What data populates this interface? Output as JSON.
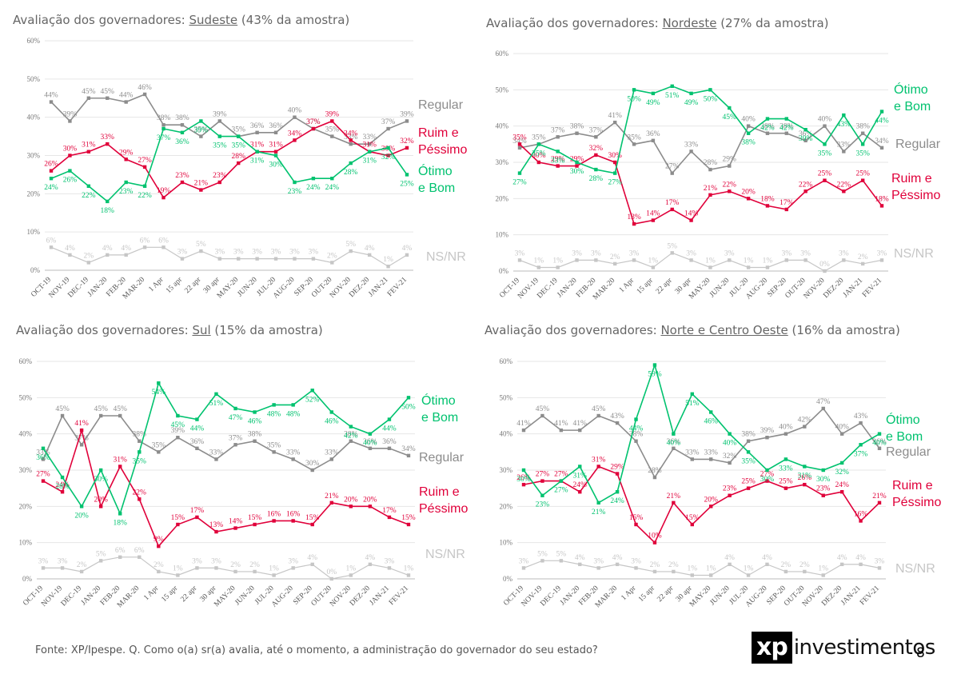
{
  "colors": {
    "regular": "#8c8c8c",
    "ruim": "#e0003a",
    "otimo": "#00c26f",
    "nsnr": "#c6c6c6",
    "grid": "#e6e6e6",
    "axis": "#777777"
  },
  "footer": {
    "source": "Fonte: XP/Ipespe. Q. Como o(a) sr(a) avalia, até o momento, a administração do governador do seu estado?"
  },
  "logo": {
    "mark": "xp",
    "word": "investimentos"
  },
  "page_number": "8",
  "chart_data": [
    {
      "type": "line",
      "title": {
        "prefix": "Avaliação dos governadores: ",
        "region": "Sudeste",
        "suffix": " (43% da amostra)"
      },
      "categories": [
        "OCT-19",
        "NOV-19",
        "DEC-19",
        "JAN-20",
        "FEB-20",
        "MAR-20",
        "1 Apr",
        "15 apr",
        "22 apr",
        "30 apr",
        "MAY-20",
        "JUN-20",
        "JUL-20",
        "AUG-20",
        "SEP-20",
        "OUT-20",
        "NOV-20",
        "DEZ-20",
        "JAN-21",
        "FEV-21"
      ],
      "yticks": [
        "0%",
        "10%",
        "20%",
        "30%",
        "40%",
        "50%",
        "60%"
      ],
      "ylim": [
        0,
        60
      ],
      "series": [
        {
          "key": "regular",
          "name": "Regular",
          "values": [
            44,
            39,
            45,
            45,
            44,
            46,
            38,
            38,
            35,
            39,
            35,
            36,
            36,
            40,
            37,
            35,
            33,
            33,
            37,
            39
          ]
        },
        {
          "key": "ruim",
          "name": "Ruim e Péssimo",
          "values": [
            26,
            30,
            31,
            33,
            29,
            27,
            19,
            23,
            21,
            23,
            28,
            31,
            31,
            34,
            37,
            39,
            34,
            31,
            30,
            32
          ]
        },
        {
          "key": "otimo",
          "name": "Ótimo e Bom",
          "values": [
            24,
            26,
            22,
            18,
            23,
            22,
            37,
            36,
            39,
            35,
            35,
            31,
            30,
            23,
            24,
            24,
            28,
            31,
            32,
            25
          ]
        },
        {
          "key": "nsnr",
          "name": "NS/NR",
          "values": [
            6,
            4,
            2,
            4,
            4,
            6,
            6,
            3,
            5,
            3,
            3,
            3,
            3,
            3,
            3,
            2,
            5,
            4,
            1,
            4
          ]
        }
      ]
    },
    {
      "type": "line",
      "title": {
        "prefix": "Avaliação dos governadores: ",
        "region": "Nordeste",
        "suffix": " (27% da amostra)"
      },
      "categories": [
        "OCT-19",
        "NOV-19",
        "DEC-19",
        "JAN-20",
        "FEB-20",
        "MAR-20",
        "1 Apr",
        "15 apr",
        "22 apr",
        "30 apr",
        "MAY-20",
        "JUN-20",
        "JUL-20",
        "AUG-20",
        "SEP-20",
        "OUT-20",
        "NOV-20",
        "DEZ-20",
        "JAN-21",
        "FEV-21"
      ],
      "yticks": [
        "0%",
        "10%",
        "20%",
        "30%",
        "40%",
        "50%",
        "60%"
      ],
      "ylim": [
        0,
        60
      ],
      "series": [
        {
          "key": "regular",
          "name": "Regular",
          "values": [
            34,
            35,
            37,
            38,
            37,
            41,
            35,
            36,
            27,
            33,
            28,
            29,
            40,
            38,
            38,
            36,
            40,
            33,
            38,
            34
          ]
        },
        {
          "key": "ruim",
          "name": "Ruim e Péssimo",
          "values": [
            35,
            30,
            29,
            29,
            32,
            30,
            13,
            14,
            17,
            14,
            21,
            22,
            20,
            18,
            17,
            22,
            25,
            22,
            25,
            18
          ]
        },
        {
          "key": "otimo",
          "name": "Ótimo e Bom",
          "values": [
            27,
            35,
            33,
            30,
            28,
            27,
            50,
            49,
            51,
            49,
            50,
            45,
            38,
            42,
            42,
            39,
            35,
            43,
            35,
            44
          ]
        },
        {
          "key": "nsnr",
          "name": "NS/NR",
          "values": [
            3,
            1,
            1,
            3,
            3,
            2,
            3,
            1,
            5,
            3,
            1,
            3,
            1,
            1,
            3,
            3,
            0,
            3,
            2,
            3
          ]
        }
      ]
    },
    {
      "type": "line",
      "title": {
        "prefix": "Avaliação dos governadores: ",
        "region": "Sul",
        "suffix": " (15% da amostra)"
      },
      "categories": [
        "OCT-19",
        "NOV-19",
        "DEC-19",
        "JAN-20",
        "FEB-20",
        "MAR-20",
        "1 Apr",
        "15 apr",
        "22 apr",
        "30 apr",
        "MAY-20",
        "JUN-20",
        "JUL-20",
        "AUG-20",
        "SEP-20",
        "OUT-20",
        "NOV-20",
        "DEZ-20",
        "JAN-21",
        "FEV-21"
      ],
      "yticks": [
        "0%",
        "10%",
        "20%",
        "30%",
        "40%",
        "50%",
        "60%"
      ],
      "ylim": [
        0,
        60
      ],
      "series": [
        {
          "key": "regular",
          "name": "Regular",
          "values": [
            33,
            45,
            37,
            45,
            45,
            38,
            35,
            39,
            36,
            33,
            37,
            38,
            35,
            33,
            30,
            33,
            38,
            36,
            36,
            34
          ]
        },
        {
          "key": "ruim",
          "name": "Ruim e Péssimo",
          "values": [
            27,
            24,
            41,
            20,
            31,
            22,
            9,
            15,
            17,
            13,
            14,
            15,
            16,
            16,
            15,
            21,
            20,
            20,
            17,
            15
          ]
        },
        {
          "key": "otimo",
          "name": "Ótimo e Bom",
          "values": [
            36,
            28,
            20,
            30,
            18,
            35,
            54,
            45,
            44,
            51,
            47,
            46,
            48,
            48,
            52,
            46,
            42,
            40,
            44,
            50
          ]
        },
        {
          "key": "nsnr",
          "name": "NS/NR",
          "values": [
            3,
            3,
            2,
            5,
            6,
            6,
            2,
            1,
            3,
            3,
            2,
            2,
            1,
            3,
            4,
            0,
            1,
            4,
            3,
            1
          ]
        }
      ]
    },
    {
      "type": "line",
      "title": {
        "prefix": "Avaliação dos governadores: ",
        "region": "Norte e Centro Oeste",
        "suffix": " (16% da amostra)"
      },
      "categories": [
        "OCT-19",
        "NOV-19",
        "DEC-19",
        "JAN-20",
        "FEB-20",
        "MAR-20",
        "1 Apr",
        "15 apr",
        "22 apr",
        "30 apr",
        "MAY-20",
        "JUN-20",
        "JUL-20",
        "AUG-20",
        "SEP-20",
        "OUT-20",
        "NOV-20",
        "DEZ-20",
        "JAN-21",
        "FEV-21"
      ],
      "yticks": [
        "0%",
        "10%",
        "20%",
        "30%",
        "40%",
        "50%",
        "60%"
      ],
      "ylim": [
        0,
        60
      ],
      "series": [
        {
          "key": "regular",
          "name": "Regular",
          "values": [
            41,
            45,
            41,
            41,
            45,
            43,
            38,
            28,
            36,
            33,
            33,
            32,
            38,
            39,
            40,
            42,
            47,
            40,
            43,
            36
          ]
        },
        {
          "key": "ruim",
          "name": "Ruim e Péssimo",
          "values": [
            26,
            27,
            27,
            24,
            31,
            29,
            15,
            10,
            21,
            15,
            20,
            23,
            25,
            27,
            25,
            26,
            23,
            24,
            16,
            21
          ]
        },
        {
          "key": "otimo",
          "name": "Ótimo e Bom",
          "values": [
            30,
            23,
            27,
            31,
            21,
            24,
            44,
            59,
            40,
            51,
            46,
            40,
            35,
            30,
            33,
            31,
            30,
            32,
            37,
            40
          ]
        },
        {
          "key": "nsnr",
          "name": "NS/NR",
          "values": [
            3,
            5,
            5,
            4,
            3,
            4,
            3,
            2,
            2,
            1,
            1,
            4,
            1,
            4,
            2,
            2,
            1,
            4,
            4,
            3
          ]
        }
      ]
    }
  ]
}
